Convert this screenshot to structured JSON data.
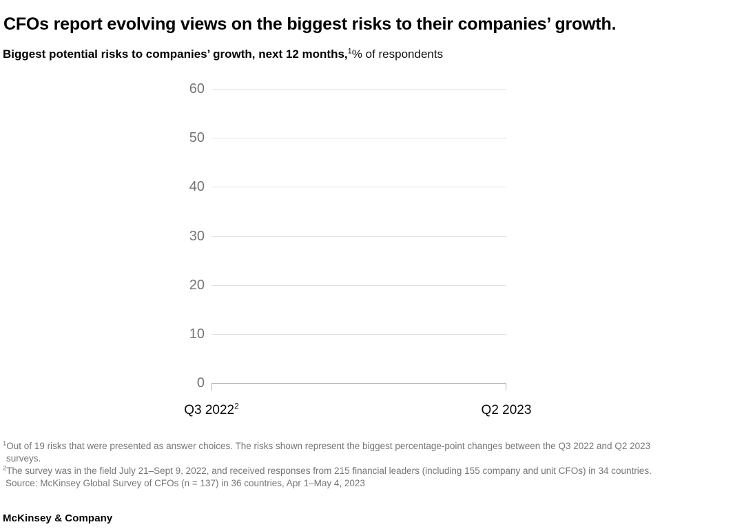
{
  "header": {
    "title": "CFOs report evolving views on the biggest risks to their companies’ growth.",
    "subtitle_bold": "Biggest potential risks to companies’ growth, next 12 months,",
    "subtitle_sup": "1",
    "subtitle_rest": "% of respondents"
  },
  "chart_data": {
    "type": "line",
    "title": "Biggest potential risks to companies’ growth, next 12 months, % of respondents",
    "x_categories": [
      "Q3 2022",
      "Q2 2023"
    ],
    "x_category_footnote_marks": [
      "2",
      ""
    ],
    "series": [],
    "ylim": [
      0,
      60
    ],
    "yticks": [
      0,
      10,
      20,
      30,
      40,
      50,
      60
    ],
    "xlabel": "",
    "ylabel": "% of respondents",
    "grid": "horizontal",
    "legend_position": "none"
  },
  "colors": {
    "gridline": "#e2e2e2",
    "axis_line": "#b1b1b1",
    "tick_label": "#757575",
    "x_label": "#0a0a0a",
    "footnote": "#757575",
    "title": "#000000"
  },
  "footnotes": [
    {
      "sup": "1",
      "text": "Out of 19 risks that were presented as answer choices. The risks shown represent the biggest percentage-point changes between the Q3 2022 and Q2 2023\nsurveys."
    },
    {
      "sup": "2",
      "text": "The survey was in the field July 21–Sept 9, 2022, and received responses from 215 financial leaders (including 155 company and unit CFOs) in 34 countries."
    },
    {
      "sup": "",
      "text": "Source: McKinsey Global Survey of CFOs (n = 137) in 36 countries, Apr 1–May 4, 2023"
    }
  ],
  "footer": {
    "brand": "McKinsey & Company"
  }
}
